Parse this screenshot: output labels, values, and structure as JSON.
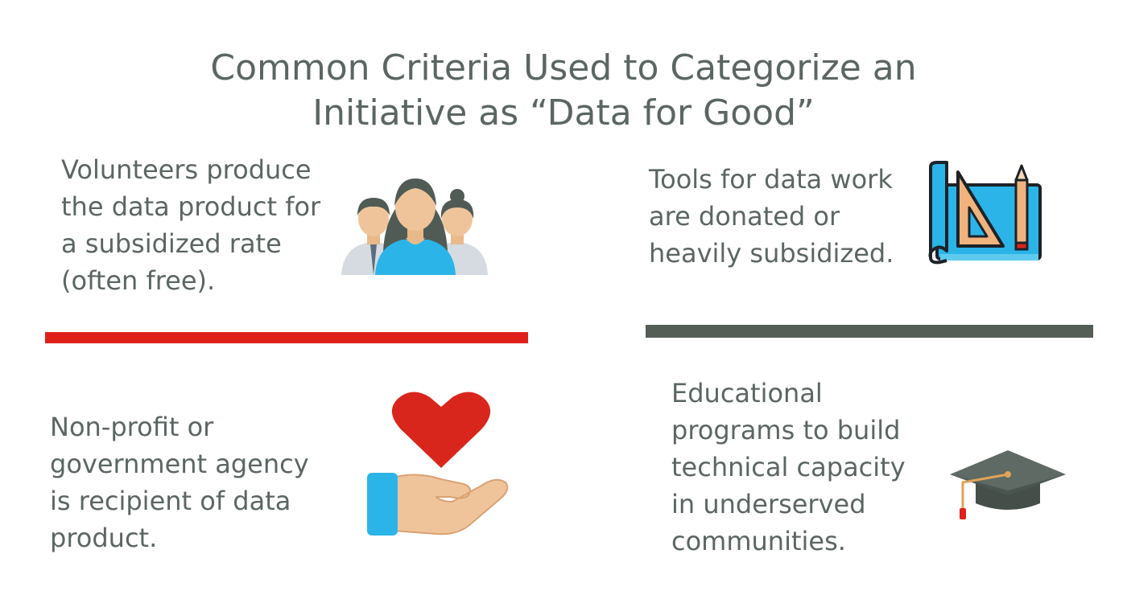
{
  "title": {
    "line1": "Common Criteria Used to Categorize an",
    "line2": "Initiative as “Data for Good”"
  },
  "criteria": [
    {
      "lines": [
        "Volunteers produce",
        "the data product for",
        "a subsidized rate",
        "(often free)."
      ],
      "icon": "volunteers-group-icon"
    },
    {
      "lines": [
        "Tools for data work",
        "are donated or",
        "heavily subsidized."
      ],
      "icon": "blueprint-ruler-pencil-icon"
    },
    {
      "lines": [
        "Non-profit or",
        "government agency",
        "is recipient of data",
        "product."
      ],
      "icon": "heart-in-hand-icon"
    },
    {
      "lines": [
        "Educational",
        "programs to build",
        "technical capacity",
        "in underserved",
        "communities."
      ],
      "icon": "graduation-cap-icon"
    }
  ],
  "colors": {
    "text": "#5b6661",
    "divider_left": "#e0211b",
    "divider_right": "#545d56",
    "accent_blue": "#2bb4e8",
    "heart_red": "#d9261c"
  }
}
